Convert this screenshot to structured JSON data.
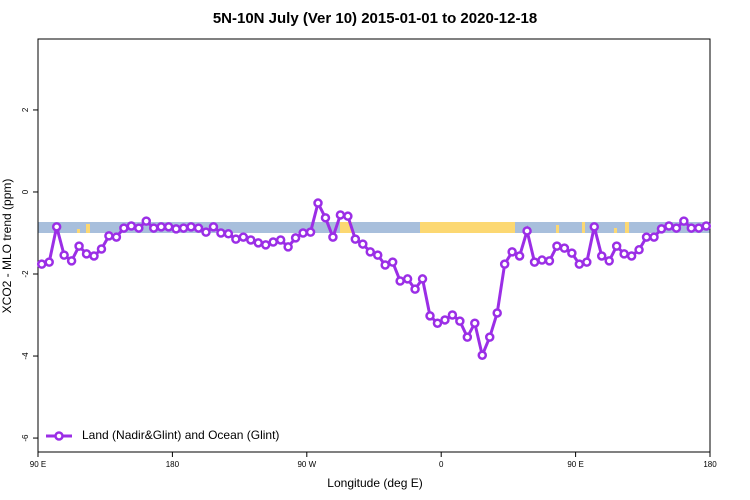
{
  "chart_data": {
    "type": "line",
    "title": "5N-10N July (Ver 10)   2015-01-01 to 2020-12-18",
    "x_label": "Longitude (deg E)",
    "y_label": "XCO2 - MLO trend (ppm)",
    "x": [
      92.5,
      97.5,
      102.5,
      107.5,
      112.5,
      117.5,
      122.5,
      127.5,
      132.5,
      137.5,
      142.5,
      147.5,
      152.5,
      157.5,
      162.5,
      167.5,
      172.5,
      177.5,
      182.5,
      187.5,
      192.5,
      197.5,
      202.5,
      207.5,
      212.5,
      217.5,
      222.5,
      227.5,
      232.5,
      237.5,
      242.5,
      247.5,
      252.5,
      257.5,
      262.5,
      267.5,
      272.5,
      277.5,
      282.5,
      287.5,
      292.5,
      297.5,
      302.5,
      307.5,
      312.5,
      317.5,
      322.5,
      327.5,
      332.5,
      337.5,
      342.5,
      347.5,
      352.5,
      357.5,
      362.5,
      367.5,
      372.5,
      377.5,
      382.5,
      387.5,
      392.5,
      397.5,
      402.5,
      407.5,
      412.5,
      417.5,
      422.5,
      427.5,
      432.5,
      437.5,
      442.5,
      447.5,
      452.5,
      457.5,
      462.5,
      467.5,
      472.5,
      477.5,
      482.5,
      487.5,
      492.5,
      497.5,
      502.5,
      507.5,
      512.5,
      517.5,
      522.5,
      527.5,
      532.5,
      537.5
    ],
    "series": [
      {
        "name": "Land (Nadir&Glint) and Ocean (Glint)",
        "color": "#9b2ee6",
        "values": [
          -1.76,
          -1.71,
          -0.85,
          -1.54,
          -1.68,
          -1.32,
          -1.51,
          -1.56,
          -1.39,
          -1.07,
          -1.1,
          -0.88,
          -0.83,
          -0.88,
          -0.71,
          -0.88,
          -0.85,
          -0.85,
          -0.9,
          -0.88,
          -0.85,
          -0.88,
          -0.98,
          -0.85,
          -1.0,
          -1.02,
          -1.15,
          -1.1,
          -1.17,
          -1.24,
          -1.29,
          -1.22,
          -1.17,
          -1.34,
          -1.12,
          -1.0,
          -0.98,
          -0.27,
          -0.63,
          -1.1,
          -0.56,
          -0.59,
          -1.15,
          -1.27,
          -1.46,
          -1.54,
          -1.78,
          -1.71,
          -2.17,
          -2.12,
          -2.37,
          -2.12,
          -3.02,
          -3.2,
          -3.12,
          -3.0,
          -3.15,
          -3.54,
          -3.2,
          -3.98,
          -3.54,
          -2.95,
          -1.76,
          -1.46,
          -1.56,
          -0.95,
          -1.71,
          -1.66,
          -1.68,
          -1.32,
          -1.37,
          -1.49,
          -1.76,
          -1.71,
          -0.85,
          -1.56,
          -1.68,
          -1.32,
          -1.51,
          -1.56,
          -1.41,
          -1.1,
          -1.1,
          -0.9,
          -0.83,
          -0.88,
          -0.71,
          -0.88,
          -0.88,
          -0.83
        ]
      }
    ],
    "xlim": [
      90,
      540
    ],
    "xticks": [
      {
        "value": 90,
        "label": "90 E"
      },
      180,
      {
        "value": 270,
        "label": "90 W"
      },
      {
        "value": 360,
        "label": "0"
      },
      {
        "value": 450,
        "label": "90 E"
      },
      {
        "value": 540,
        "label": "180"
      }
    ],
    "ylim": [
      -6.34,
      3.73
    ],
    "yticks": [
      -6,
      -4,
      -2,
      0,
      2
    ],
    "legend": "bottom-left"
  }
}
